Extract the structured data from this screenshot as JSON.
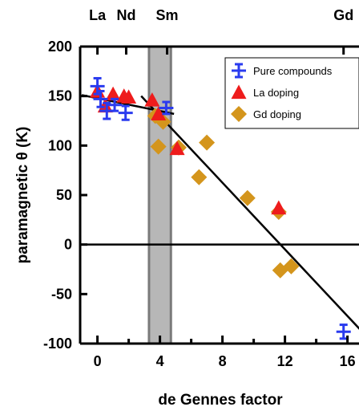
{
  "chart_data": {
    "type": "scatter",
    "xlabel": "de Gennes factor",
    "ylabel": "paramagnetic θ (K)",
    "xlim": [
      -1,
      17
    ],
    "ylim": [
      -100,
      200
    ],
    "x_ticks": [
      0,
      4,
      8,
      12,
      16
    ],
    "y_ticks": [
      -100,
      -50,
      0,
      50,
      100,
      150,
      200
    ],
    "top_axis_ticks": [
      {
        "label": "La",
        "x": 0
      },
      {
        "label": "Nd",
        "x": 1.84
      },
      {
        "label": "Sm",
        "x": 4.46
      },
      {
        "label": "Gd",
        "x": 15.75
      }
    ],
    "zero_line": true,
    "shaded_band": {
      "x_range": [
        3.3,
        4.7
      ],
      "color": "#b7b7b7"
    },
    "fit_lines": [
      {
        "points": [
          [
            -1,
            151
          ],
          [
            4.9,
            132
          ]
        ]
      },
      {
        "points": [
          [
            2.8,
            150
          ],
          [
            17,
            -89
          ]
        ]
      }
    ],
    "legend": {
      "position": "top-right",
      "entries": [
        "Pure compounds",
        "La doping",
        "Gd doping"
      ]
    },
    "series": [
      {
        "name": "Pure compounds",
        "marker": "cross",
        "color": "#2a3bef",
        "points": [
          {
            "x": 0,
            "y": 160,
            "err": 8
          },
          {
            "x": 0.2,
            "y": 147,
            "err": 8
          },
          {
            "x": 0.6,
            "y": 135,
            "err": 8
          },
          {
            "x": 1.1,
            "y": 141,
            "err": 6
          },
          {
            "x": 1.8,
            "y": 133,
            "err": 7
          },
          {
            "x": 4.4,
            "y": 138,
            "err": 6
          },
          {
            "x": 15.75,
            "y": -88,
            "err": 7
          }
        ]
      },
      {
        "name": "La doping",
        "marker": "triangle",
        "color": "#ee1c1c",
        "points": [
          {
            "x": 0,
            "y": 155
          },
          {
            "x": 0.5,
            "y": 140
          },
          {
            "x": 1.0,
            "y": 152
          },
          {
            "x": 1.7,
            "y": 150
          },
          {
            "x": 2.0,
            "y": 149
          },
          {
            "x": 3.5,
            "y": 146
          },
          {
            "x": 3.9,
            "y": 132
          },
          {
            "x": 5.1,
            "y": 97
          },
          {
            "x": 11.6,
            "y": 37
          }
        ]
      },
      {
        "name": "Gd doping",
        "marker": "diamond",
        "color": "#d4951c",
        "points": [
          {
            "x": 3.7,
            "y": 130
          },
          {
            "x": 4.2,
            "y": 124
          },
          {
            "x": 3.9,
            "y": 99
          },
          {
            "x": 5.2,
            "y": 98
          },
          {
            "x": 6.5,
            "y": 68
          },
          {
            "x": 7.0,
            "y": 103
          },
          {
            "x": 9.6,
            "y": 47
          },
          {
            "x": 11.6,
            "y": 33
          },
          {
            "x": 11.7,
            "y": -26
          },
          {
            "x": 12.4,
            "y": -22
          }
        ]
      }
    ]
  }
}
